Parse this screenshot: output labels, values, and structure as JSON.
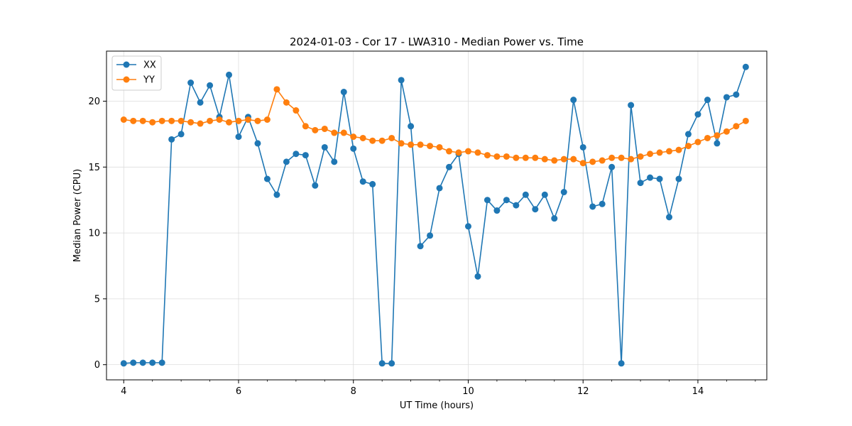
{
  "chart_data": {
    "type": "line",
    "title": "2024-01-03 - Cor 17 - LWA310 - Median Power vs. Time",
    "xlabel": "UT Time (hours)",
    "ylabel": "Median Power (CPU)",
    "xlim": [
      3.7,
      15.2
    ],
    "ylim": [
      -1.15,
      23.8
    ],
    "xticks": [
      4,
      6,
      8,
      10,
      12,
      14
    ],
    "yticks": [
      0,
      5,
      10,
      15,
      20
    ],
    "grid": true,
    "legend_position": "top-left",
    "x": [
      4.0,
      4.1667,
      4.3333,
      4.5,
      4.6667,
      4.8333,
      5.0,
      5.1667,
      5.3333,
      5.5,
      5.6667,
      5.8333,
      6.0,
      6.1667,
      6.3333,
      6.5,
      6.6667,
      6.8333,
      7.0,
      7.1667,
      7.3333,
      7.5,
      7.6667,
      7.8333,
      8.0,
      8.1667,
      8.3333,
      8.5,
      8.6667,
      8.8333,
      9.0,
      9.1667,
      9.3333,
      9.5,
      9.6667,
      9.8333,
      10.0,
      10.1667,
      10.3333,
      10.5,
      10.6667,
      10.8333,
      11.0,
      11.1667,
      11.3333,
      11.5,
      11.6667,
      11.8333,
      12.0,
      12.1667,
      12.3333,
      12.5,
      12.6667,
      12.8333,
      13.0,
      13.1667,
      13.3333,
      13.5,
      13.6667,
      13.8333,
      14.0,
      14.1667,
      14.3333,
      14.5,
      14.6667,
      14.8333
    ],
    "series": [
      {
        "name": "XX",
        "color": "#1f77b4",
        "values": [
          0.1,
          0.15,
          0.15,
          0.15,
          0.15,
          17.1,
          17.5,
          21.4,
          19.9,
          21.2,
          18.8,
          22.0,
          17.3,
          18.8,
          16.8,
          14.1,
          12.9,
          15.4,
          16.0,
          15.9,
          13.6,
          16.5,
          15.4,
          20.7,
          16.4,
          13.9,
          13.7,
          0.1,
          0.1,
          21.6,
          18.1,
          9.0,
          9.8,
          13.4,
          15.0,
          16.0,
          10.5,
          6.7,
          12.5,
          11.7,
          12.5,
          12.1,
          12.9,
          11.8,
          12.9,
          11.1,
          13.1,
          20.1,
          16.5,
          12.0,
          12.2,
          15.0,
          0.1,
          19.7,
          13.8,
          14.2,
          14.1,
          11.2,
          14.1,
          17.5,
          19.0,
          20.1,
          16.8,
          20.3,
          20.5,
          22.6
        ]
      },
      {
        "name": "YY",
        "color": "#ff7f0e",
        "values": [
          18.6,
          18.5,
          18.5,
          18.4,
          18.5,
          18.5,
          18.5,
          18.4,
          18.3,
          18.5,
          18.6,
          18.4,
          18.5,
          18.6,
          18.5,
          18.6,
          20.9,
          19.9,
          19.3,
          18.1,
          17.8,
          17.9,
          17.6,
          17.6,
          17.3,
          17.2,
          17.0,
          17.0,
          17.2,
          16.8,
          16.7,
          16.7,
          16.6,
          16.5,
          16.2,
          16.1,
          16.2,
          16.1,
          15.9,
          15.8,
          15.8,
          15.7,
          15.7,
          15.7,
          15.6,
          15.5,
          15.6,
          15.6,
          15.3,
          15.4,
          15.5,
          15.7,
          15.7,
          15.6,
          15.8,
          16.0,
          16.1,
          16.2,
          16.3,
          16.6,
          16.9,
          17.2,
          17.4,
          17.7,
          18.1,
          18.5
        ]
      }
    ]
  }
}
